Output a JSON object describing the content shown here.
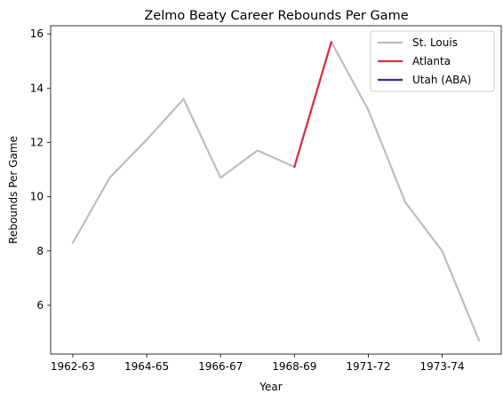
{
  "chart_data": {
    "type": "line",
    "title": "Zelmo Beaty Career Rebounds Per Game",
    "xlabel": "Year",
    "ylabel": "Rebounds Per Game",
    "x_tick_labels": [
      "1962-63",
      "1964-65",
      "1966-67",
      "1968-69",
      "1971-72",
      "1973-74"
    ],
    "x_tick_positions": [
      0,
      2,
      4,
      6,
      8,
      10
    ],
    "x": [
      0,
      1,
      2,
      3,
      4,
      5,
      6,
      7,
      8,
      9,
      10,
      11
    ],
    "xlim": [
      -0.6,
      11.6
    ],
    "ylim": [
      4.2,
      16.3
    ],
    "y_ticks": [
      6,
      8,
      10,
      12,
      14,
      16
    ],
    "grid": false,
    "legend_position": "top-right",
    "series": [
      {
        "name": "St. Louis",
        "color": "#bdbdbd",
        "x": [
          0,
          1,
          2,
          3,
          4,
          5,
          6,
          7,
          8,
          9,
          10,
          11
        ],
        "values": [
          8.3,
          10.7,
          12.1,
          13.6,
          10.7,
          11.7,
          11.1,
          15.7,
          13.2,
          9.8,
          8.0,
          4.7
        ]
      },
      {
        "name": "Atlanta",
        "color": "#d62f3a",
        "x": [
          6,
          7
        ],
        "values": [
          11.1,
          15.7
        ]
      },
      {
        "name": "Utah (ABA)",
        "color": "#4b2786",
        "x": [],
        "values": []
      }
    ]
  }
}
